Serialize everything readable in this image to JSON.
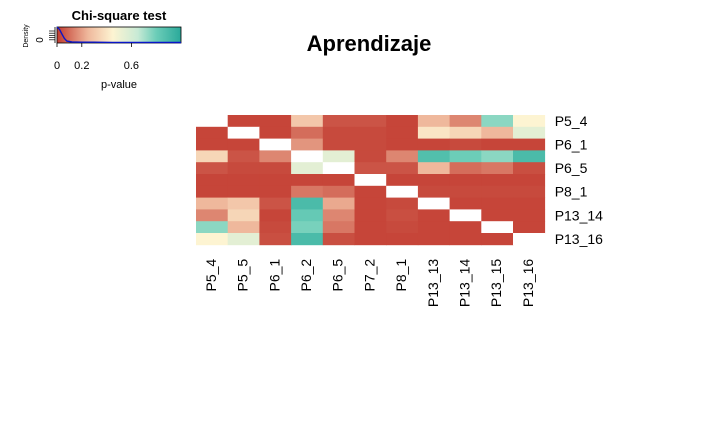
{
  "chart_data": {
    "type": "heatmap",
    "title": "Aprendizaje",
    "x_labels": [
      "P5_4",
      "P5_5",
      "P6_1",
      "P6_2",
      "P6_5",
      "P7_2",
      "P8_1",
      "P13_13",
      "P13_14",
      "P13_15",
      "P13_16"
    ],
    "y_labels_shown": [
      "P5_4",
      "P6_1",
      "P6_5",
      "P8_1",
      "P13_14",
      "P13_16"
    ],
    "values": [
      [
        null,
        0.02,
        0.02,
        0.3,
        0.05,
        0.05,
        0.02,
        0.25,
        0.15,
        0.75,
        0.45
      ],
      [
        0.02,
        null,
        0.02,
        0.1,
        0.03,
        0.03,
        0.02,
        0.4,
        0.35,
        0.25,
        0.55
      ],
      [
        0.02,
        0.02,
        null,
        0.18,
        0.03,
        0.03,
        0.02,
        0.02,
        0.03,
        0.02,
        0.02
      ],
      [
        0.35,
        0.05,
        0.15,
        null,
        0.55,
        0.03,
        0.15,
        0.88,
        0.8,
        0.75,
        0.9
      ],
      [
        0.05,
        0.03,
        0.03,
        0.55,
        null,
        0.05,
        0.05,
        0.25,
        0.1,
        0.12,
        0.04
      ],
      [
        0.02,
        0.02,
        0.02,
        0.02,
        0.02,
        null,
        0.02,
        0.02,
        0.02,
        0.02,
        0.02
      ],
      [
        0.02,
        0.02,
        0.02,
        0.12,
        0.1,
        0.02,
        null,
        0.03,
        0.03,
        0.03,
        0.03
      ],
      [
        0.25,
        0.3,
        0.05,
        0.9,
        0.22,
        0.02,
        0.03,
        null,
        0.02,
        0.02,
        0.02
      ],
      [
        0.15,
        0.35,
        0.02,
        0.82,
        0.15,
        0.02,
        0.04,
        0.02,
        null,
        0.02,
        0.02
      ],
      [
        0.75,
        0.25,
        0.03,
        0.78,
        0.12,
        0.02,
        0.03,
        0.02,
        0.02,
        null,
        0.02
      ],
      [
        0.45,
        0.55,
        0.04,
        0.9,
        0.04,
        0.02,
        0.02,
        0.02,
        0.02,
        0.02,
        null
      ]
    ],
    "color_scale": {
      "stops": [
        {
          "p": 0.0,
          "color": "#c23b30"
        },
        {
          "p": 0.25,
          "color": "#efb89c"
        },
        {
          "p": 0.45,
          "color": "#fdf4d2"
        },
        {
          "p": 0.65,
          "color": "#c8ead5"
        },
        {
          "p": 0.8,
          "color": "#6ccdb8"
        },
        {
          "p": 1.0,
          "color": "#2aa99a"
        }
      ],
      "missing_color": "#ffffff"
    },
    "color_key": {
      "title": "Chi-square test",
      "xlabel": "p-value",
      "ylabel": "Density",
      "x_ticks": [
        0,
        0.2,
        0.6
      ],
      "x_tick_labels": [
        "0",
        "0.2",
        "0.6"
      ],
      "y_ticks": [
        0
      ],
      "y_tick_labels": [
        "0"
      ],
      "x_range": [
        0,
        1
      ],
      "density_line_color": "#0a16c8",
      "density_curve": [
        [
          0.0,
          1.0
        ],
        [
          0.02,
          0.85
        ],
        [
          0.04,
          0.55
        ],
        [
          0.06,
          0.28
        ],
        [
          0.08,
          0.12
        ],
        [
          0.12,
          0.06
        ],
        [
          0.2,
          0.05
        ],
        [
          0.3,
          0.05
        ],
        [
          0.45,
          0.04
        ],
        [
          0.6,
          0.04
        ],
        [
          0.75,
          0.04
        ],
        [
          0.9,
          0.04
        ],
        [
          1.0,
          0.03
        ]
      ]
    }
  }
}
